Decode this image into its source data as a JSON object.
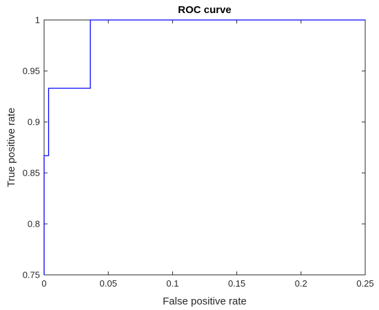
{
  "chart_data": {
    "type": "line",
    "title": "ROC curve",
    "xlabel": "False positive rate",
    "ylabel": "True positive rate",
    "xlim": [
      0,
      0.25
    ],
    "ylim": [
      0.75,
      1
    ],
    "xticks": [
      0,
      0.05,
      0.1,
      0.15,
      0.2,
      0.25
    ],
    "xtick_labels": [
      "0",
      "0.05",
      "0.1",
      "0.15",
      "0.2",
      "0.25"
    ],
    "yticks": [
      0.75,
      0.8,
      0.85,
      0.9,
      0.95,
      1
    ],
    "ytick_labels": [
      "0.75",
      "0.8",
      "0.85",
      "0.9",
      "0.95",
      "1"
    ],
    "grid": false,
    "line_color": "#0000ff",
    "axis_color": "#262626",
    "series": [
      {
        "x": [
          0,
          0,
          0.0035,
          0.0035,
          0.036,
          0.036,
          0.25
        ],
        "y": [
          0.75,
          0.867,
          0.867,
          0.933,
          0.933,
          1.0,
          1.0
        ]
      }
    ]
  }
}
